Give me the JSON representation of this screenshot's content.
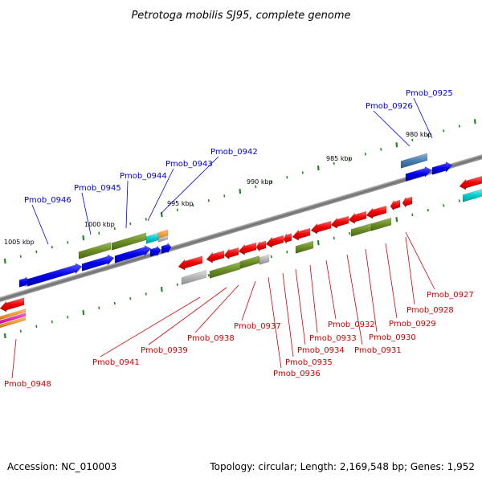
{
  "title": "Petrotoga mobilis SJ95, complete genome",
  "footer": {
    "accession": "Accession: NC_010003",
    "summary": "Topology: circular; Length: 2,169,548 bp; Genes: 1,952"
  },
  "colors": {
    "upper_label": "#0000cc",
    "lower_label": "#cc0000",
    "backbone": "#808080",
    "tick": "#228822"
  },
  "ticks": [
    {
      "label": "980 kbp",
      "major": true
    },
    {
      "label": "985 kbp",
      "major": true
    },
    {
      "label": "990 kbp",
      "major": true
    },
    {
      "label": "995 kbp",
      "major": true
    },
    {
      "label": "1000 kbp",
      "major": true
    },
    {
      "label": "1005 kbp",
      "major": true
    }
  ],
  "upper_labels": [
    {
      "name": "Pmob_0925"
    },
    {
      "name": "Pmob_0926"
    },
    {
      "name": "Pmob_0942"
    },
    {
      "name": "Pmob_0943"
    },
    {
      "name": "Pmob_0944"
    },
    {
      "name": "Pmob_0945"
    },
    {
      "name": "Pmob_0946"
    }
  ],
  "lower_labels": [
    {
      "name": "Pmob_0927"
    },
    {
      "name": "Pmob_0928"
    },
    {
      "name": "Pmob_0929"
    },
    {
      "name": "Pmob_0930"
    },
    {
      "name": "Pmob_0931"
    },
    {
      "name": "Pmob_0932"
    },
    {
      "name": "Pmob_0933"
    },
    {
      "name": "Pmob_0934"
    },
    {
      "name": "Pmob_0935"
    },
    {
      "name": "Pmob_0936"
    },
    {
      "name": "Pmob_0937"
    },
    {
      "name": "Pmob_0938"
    },
    {
      "name": "Pmob_0939"
    },
    {
      "name": "Pmob_0941"
    },
    {
      "name": "Pmob_0948"
    }
  ]
}
